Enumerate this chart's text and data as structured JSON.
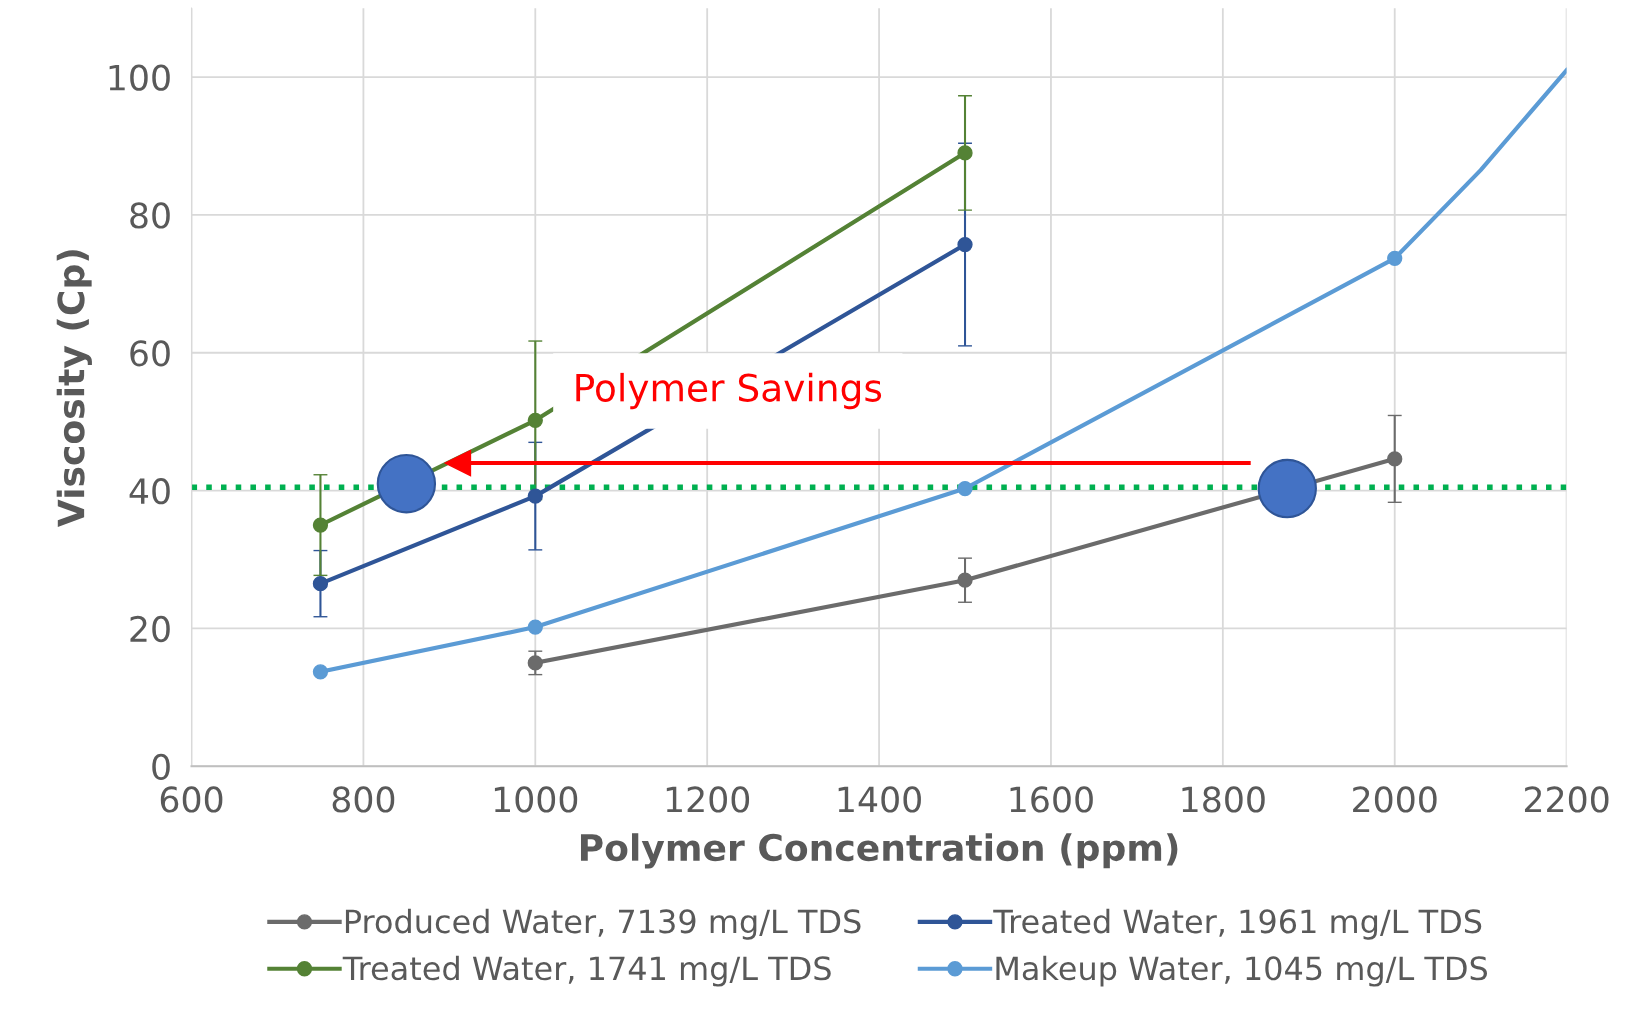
{
  "chart_data": {
    "type": "line",
    "xlabel": "Polymer Concentration (ppm)",
    "ylabel": "Viscosity (Cp)",
    "xlim": [
      600,
      2200
    ],
    "xticks": [
      600,
      800,
      1000,
      1200,
      1400,
      1600,
      1800,
      2000,
      2200
    ],
    "ylim": [
      0,
      110
    ],
    "yticks": [
      0,
      20,
      40,
      60,
      80,
      100
    ],
    "grid": true,
    "legend": "bottom",
    "marker": "circle",
    "line_style": "solid",
    "series": [
      {
        "name": "Produced Water, 7139 mg/L TDS",
        "color": "#6b6b6b",
        "x": [
          1000,
          1500,
          2000
        ],
        "values": [
          15,
          27,
          44.6
        ],
        "errors": [
          1.7,
          3.2,
          6.3
        ]
      },
      {
        "name": "Treated Water, 1961 mg/L TDS",
        "color": "#2f5597",
        "x": [
          750,
          1000,
          1500
        ],
        "values": [
          26.5,
          39.2,
          75.7
        ],
        "errors": [
          4.8,
          7.8,
          14.7
        ]
      },
      {
        "name": "Treated Water, 1741 mg/L TDS",
        "color": "#548235",
        "x": [
          750,
          1000,
          1500
        ],
        "values": [
          35,
          50.2,
          89
        ],
        "errors": [
          7.3,
          11.5,
          8.3
        ]
      },
      {
        "name": "Makeup Water, 1045 mg/L TDS",
        "color": "#5b9bd5",
        "x": [
          750,
          1000,
          1500,
          2000
        ],
        "values": [
          13.7,
          20.2,
          40.3,
          73.7
        ]
      },
      {
        "type": "line",
        "marker": "none",
        "color": "#5b9bd5",
        "x": [
          2000,
          2100,
          2200
        ],
        "values": [
          73.7,
          86.5,
          101
        ]
      },
      {
        "type": "scatter",
        "color": "#4472c4",
        "x": [
          850,
          1875
        ],
        "values": [
          41,
          40.3
        ]
      },
      {
        "type": "line",
        "marker": "triangle",
        "color": "#ff0000",
        "x": [
          1830,
          910
        ],
        "values": [
          44,
          44
        ]
      }
    ],
    "ref_lines": [
      {
        "axis": "y",
        "value": 40.5,
        "color": "#00b050",
        "line_style": "dotted"
      }
    ],
    "annotations": [
      "Polymer Savings"
    ]
  }
}
